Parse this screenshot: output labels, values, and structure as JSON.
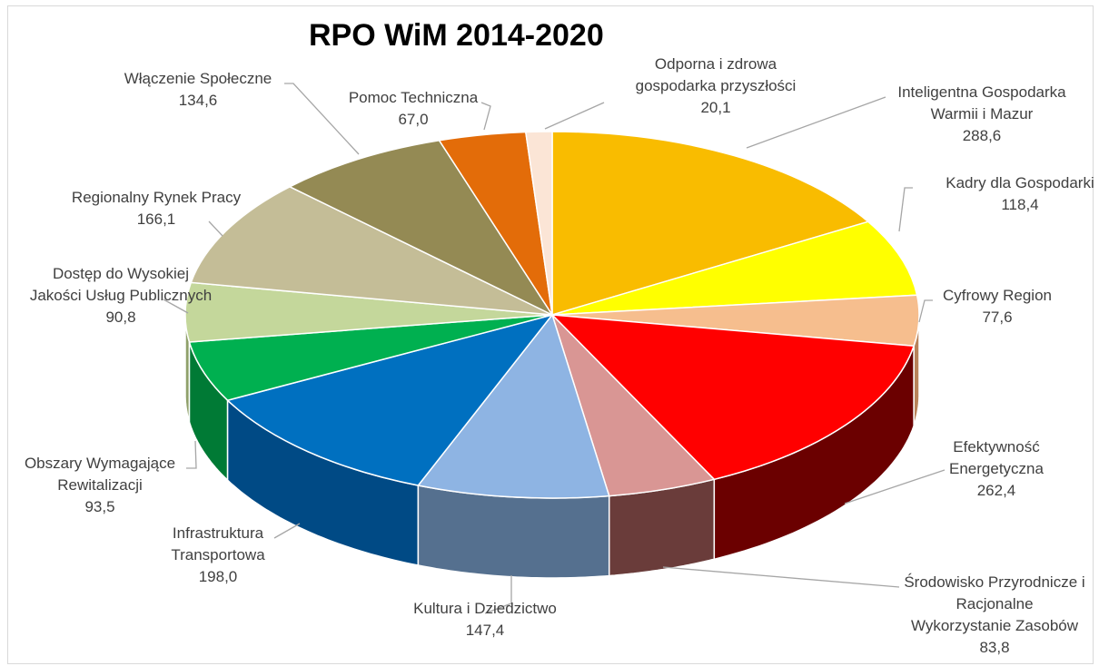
{
  "chart_data": {
    "type": "pie",
    "title": "RPO WiM 2014-2020",
    "slices": [
      {
        "name": [
          "Inteligentna Gospodarka",
          "Warmii i Mazur"
        ],
        "value_label": "288,6",
        "value": 288.6,
        "color": "#F9BC00",
        "side": "#B08400"
      },
      {
        "name": [
          "Kadry dla Gospodarki"
        ],
        "value_label": "118,4",
        "value": 118.4,
        "color": "#FFFF00",
        "side": "#B5B500"
      },
      {
        "name": [
          "Cyfrowy Region"
        ],
        "value_label": "77,6",
        "value": 77.6,
        "color": "#F6BE8E",
        "side": "#B8835A"
      },
      {
        "name": [
          "Efektywność",
          "Energetyczna"
        ],
        "value_label": "262,4",
        "value": 262.4,
        "color": "#FF0000",
        "side": "#6B0000"
      },
      {
        "name": [
          "Środowisko Przyrodnicze i",
          "Racjonalne",
          "Wykorzystanie Zasobów"
        ],
        "value_label": "83,8",
        "value": 83.8,
        "color": "#D99694",
        "side": "#6A3C3A"
      },
      {
        "name": [
          "Kultura i Dziedzictwo"
        ],
        "value_label": "147,4",
        "value": 147.4,
        "color": "#8EB4E3",
        "side": "#55708F"
      },
      {
        "name": [
          "Infrastruktura",
          "Transportowa"
        ],
        "value_label": "198,0",
        "value": 198.0,
        "color": "#0070C0",
        "side": "#004A85"
      },
      {
        "name": [
          "Obszary Wymagające",
          "Rewitalizacji"
        ],
        "value_label": "93,5",
        "value": 93.5,
        "color": "#00B050",
        "side": "#007A35"
      },
      {
        "name": [
          "Dostęp do Wysokiej",
          "Jakości Usług Publicznych"
        ],
        "value_label": "90,8",
        "value": 90.8,
        "color": "#C4D79B",
        "side": "#8FA06A"
      },
      {
        "name": [
          "Regionalny Rynek Pracy"
        ],
        "value_label": "166,1",
        "value": 166.1,
        "color": "#C4BD97",
        "side": "#8C8566"
      },
      {
        "name": [
          "Włączenie Społeczne"
        ],
        "value_label": "134,6",
        "value": 134.6,
        "color": "#948A54",
        "side": "#625A32"
      },
      {
        "name": [
          "Pomoc Techniczna"
        ],
        "value_label": "67,0",
        "value": 67.0,
        "color": "#E36C09",
        "side": "#9A4600"
      },
      {
        "name": [
          "Odporna i zdrowa",
          "gospodarka przyszłości"
        ],
        "value_label": "20,1",
        "value": 20.1,
        "color": "#FBE5D6",
        "side": "#C9B2A4"
      }
    ],
    "legend": "none"
  }
}
